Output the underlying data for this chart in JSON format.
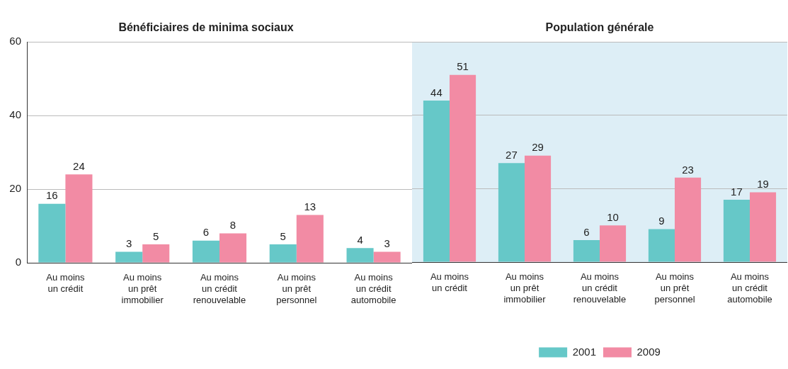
{
  "chart_data": [
    {
      "type": "bar",
      "title": "Bénéficiaires de minima sociaux",
      "categories": [
        "Au moins un crédit",
        "Au moins un prêt immobilier",
        "Au moins un crédit renouvelable",
        "Au moins un prêt personnel",
        "Au moins un crédit automobile"
      ],
      "series": [
        {
          "color": "#66c8c8",
          "values": [
            16,
            3,
            6,
            5,
            4
          ]
        },
        {
          "color": "#f28ba4",
          "values": [
            24,
            5,
            8,
            13,
            3
          ]
        }
      ],
      "ylim": [
        0,
        60
      ],
      "yticks": [
        0,
        20,
        40,
        60
      ],
      "grid": "y",
      "data_labels": true,
      "legend": false
    },
    {
      "type": "bar",
      "title": "Population générale",
      "categories": [
        "Au moins un crédit",
        "Au moins un prêt immobilier",
        "Au moins un crédit renouvelable",
        "Au moins un prêt personnel",
        "Au moins un crédit automobile"
      ],
      "series": [
        {
          "name": "2001",
          "color": "#66c8c8",
          "values": [
            44,
            27,
            6,
            9,
            17
          ]
        },
        {
          "name": "2009",
          "color": "#f28ba4",
          "values": [
            51,
            29,
            10,
            23,
            19
          ]
        }
      ],
      "ylim": [
        0,
        60
      ],
      "yticks": [
        0,
        20,
        40,
        60
      ],
      "tick_labels": "x",
      "grid": "y",
      "data_labels": true,
      "legend": "bottom",
      "bands": [
        {
          "axis": "y",
          "from": 0,
          "to": 60,
          "color": "#ddeef6"
        }
      ]
    }
  ]
}
